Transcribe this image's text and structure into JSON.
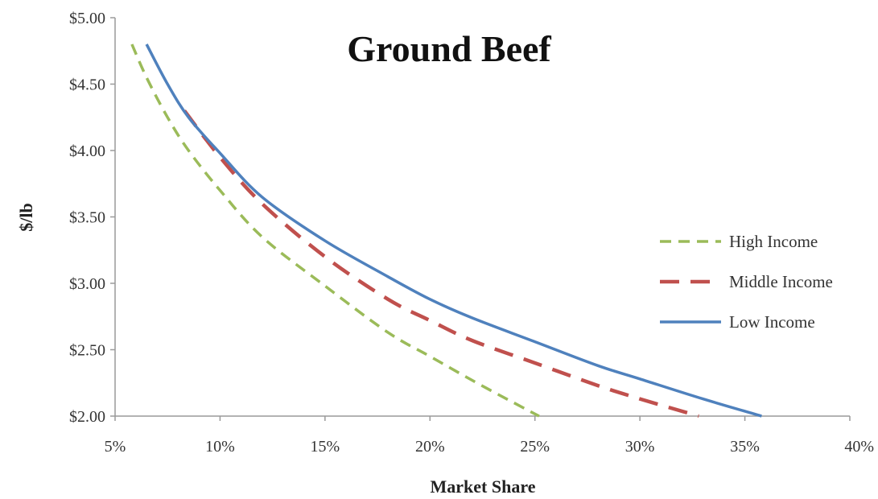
{
  "chart_data": {
    "type": "line",
    "title": "Ground Beef",
    "xlabel": "Market Share",
    "ylabel": "$/lb",
    "xlim": [
      5,
      40
    ],
    "ylim": [
      2.0,
      5.0
    ],
    "x_ticks": [
      5,
      10,
      15,
      20,
      25,
      30,
      35,
      40
    ],
    "x_tick_labels": [
      "5%",
      "10%",
      "15%",
      "20%",
      "25%",
      "30%",
      "35%",
      "40%"
    ],
    "y_ticks": [
      2.0,
      2.5,
      3.0,
      3.5,
      4.0,
      4.5,
      5.0
    ],
    "y_tick_labels": [
      "$2.00",
      "$2.50",
      "$3.00",
      "$3.50",
      "$4.00",
      "$4.50",
      "$5.00"
    ],
    "grid": false,
    "legend_position": "right",
    "series": [
      {
        "name": "High Income",
        "color": "#9bbb59",
        "style": "dashed",
        "x": [
          5.8,
          6.5,
          7.5,
          8.5,
          10,
          12,
          15,
          18,
          20,
          22,
          24,
          25.2
        ],
        "y": [
          4.8,
          4.55,
          4.25,
          4.0,
          3.7,
          3.35,
          2.98,
          2.63,
          2.45,
          2.27,
          2.1,
          2.0
        ]
      },
      {
        "name": "Middle Income",
        "color": "#c0504d",
        "style": "dashed",
        "x": [
          8.3,
          10,
          12,
          15,
          18,
          20,
          22,
          25,
          28,
          30,
          32.8
        ],
        "y": [
          4.3,
          3.95,
          3.6,
          3.2,
          2.88,
          2.72,
          2.57,
          2.4,
          2.23,
          2.13,
          2.0
        ]
      },
      {
        "name": "Low Income",
        "color": "#4f81bd",
        "style": "solid",
        "x": [
          6.5,
          7.5,
          8.5,
          10,
          12,
          15,
          18,
          20,
          22,
          25,
          28,
          30,
          33,
          35.8
        ],
        "y": [
          4.8,
          4.5,
          4.25,
          3.98,
          3.65,
          3.32,
          3.05,
          2.88,
          2.74,
          2.56,
          2.38,
          2.28,
          2.13,
          2.0
        ]
      }
    ]
  }
}
